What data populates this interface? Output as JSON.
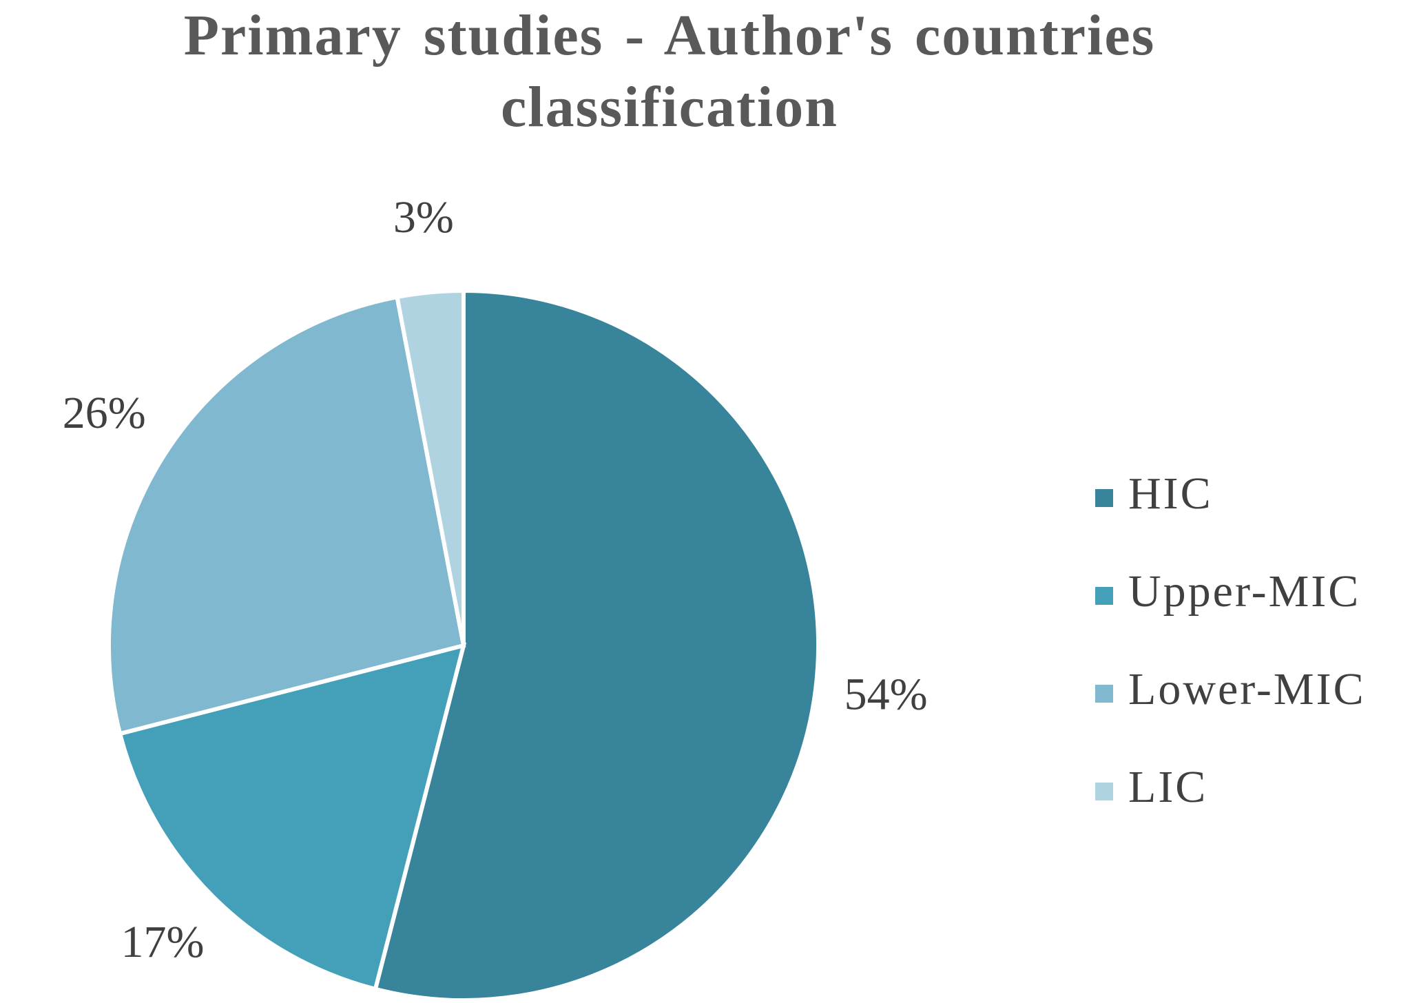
{
  "chart_data": {
    "type": "pie",
    "title": "Primary studies - Author's countries classification",
    "categories": [
      "HIC",
      "Upper-MIC",
      "Lower-MIC",
      "LIC"
    ],
    "values": [
      54,
      17,
      26,
      3
    ],
    "value_labels": [
      "54%",
      "17%",
      "26%",
      "3%"
    ],
    "colors": [
      "#38849b",
      "#44a0b8",
      "#7fb8cf",
      "#afd3e0"
    ],
    "legend": "right"
  }
}
